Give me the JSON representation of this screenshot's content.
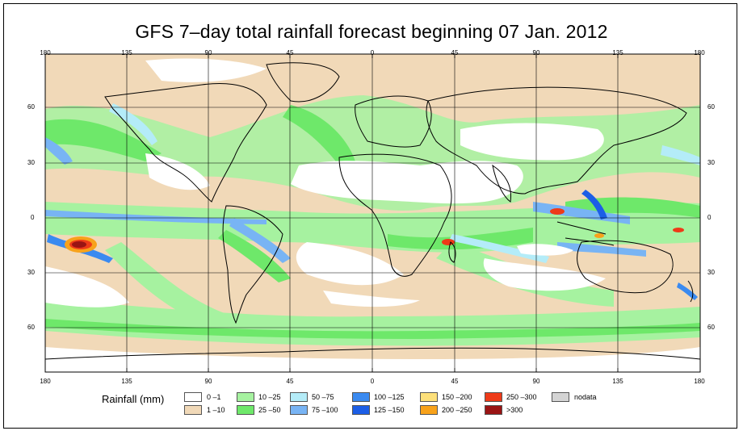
{
  "title": "GFS 7–day total rainfall forecast beginning 07 Jan. 2012",
  "axes": {
    "lon_top": [
      "180",
      "135",
      "90",
      "45",
      "0",
      "45",
      "90",
      "135",
      "180"
    ],
    "lon_bottom": [
      "180",
      "135",
      "90",
      "45",
      "0",
      "45",
      "90",
      "135",
      "180"
    ],
    "lat_left": [
      "60",
      "30",
      "0",
      "30",
      "60"
    ],
    "lat_right": [
      "60",
      "30",
      "0",
      "30",
      "60"
    ]
  },
  "legend": {
    "title": "Rainfall (mm)",
    "items": [
      {
        "label": "0 –1",
        "color": "#ffffff"
      },
      {
        "label": "1 –10",
        "color": "#f1d9b8"
      },
      {
        "label": "10 –25",
        "color": "#a6f2a0"
      },
      {
        "label": "25 –50",
        "color": "#6ee86a"
      },
      {
        "label": "50 –75",
        "color": "#b4ecf8"
      },
      {
        "label": "75 –100",
        "color": "#78b4f4"
      },
      {
        "label": "100 –125",
        "color": "#3a8af0"
      },
      {
        "label": "125 –150",
        "color": "#1c5ee6"
      },
      {
        "label": "150 –200",
        "color": "#fde07a"
      },
      {
        "label": "200 –250",
        "color": "#f8a21a"
      },
      {
        "label": "250 –300",
        "color": "#ee3a18"
      },
      {
        "label": ">300",
        "color": "#9a1414"
      },
      {
        "label": "nodata",
        "color": "#d4d4d4"
      }
    ]
  }
}
